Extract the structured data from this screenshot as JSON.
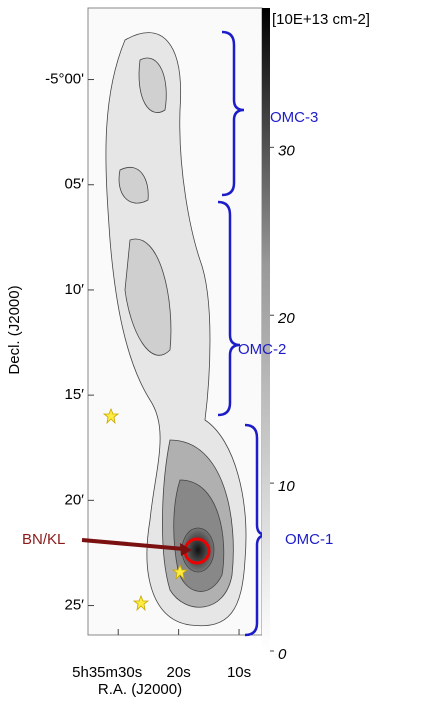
{
  "chart_data": {
    "type": "map",
    "xlabel": "R.A. (J2000)",
    "ylabel": "Decl. (J2000)",
    "xlim": [
      35,
      6.2
    ],
    "xticks": [
      {
        "value": 30,
        "label": "5h35m30s"
      },
      {
        "value": 20,
        "label": "20s"
      },
      {
        "value": 10,
        "label": "10s"
      }
    ],
    "ylim": [
      26.4,
      -3.4
    ],
    "yticks": [
      {
        "value": 0,
        "label": "-5°00'"
      },
      {
        "value": 5,
        "label": "05′"
      },
      {
        "value": 10,
        "label": "10′"
      },
      {
        "value": 15,
        "label": "15′"
      },
      {
        "value": 20,
        "label": "20′"
      },
      {
        "value": 25,
        "label": "25′"
      }
    ],
    "colorbar": {
      "title": "[10E+13 cm-2]",
      "lim": [
        0,
        38.3
      ],
      "ticks": [
        0,
        10,
        20,
        30
      ]
    },
    "annotations": [
      "OMC-3",
      "OMC-2",
      "OMC-1",
      "BN/KL"
    ]
  }
}
